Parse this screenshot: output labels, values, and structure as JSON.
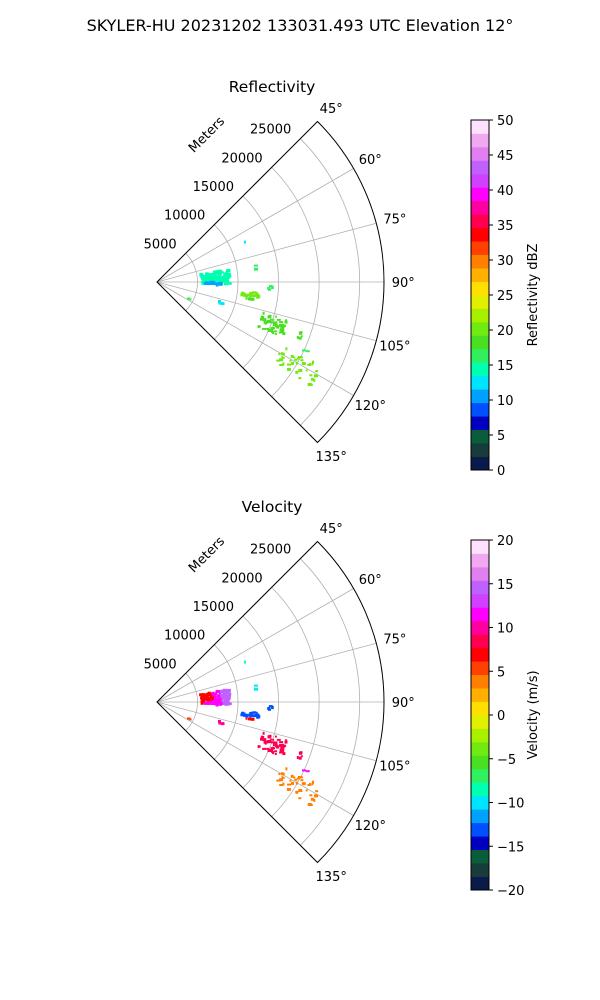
{
  "figure": {
    "title": "SKYLER-HU  20231202  133031.493 UTC Elevation 12°"
  },
  "chart_data": [
    {
      "type": "scatter",
      "subtype": "polar-sector-radar",
      "title": "Reflectivity",
      "radial_label": "Meters",
      "theta_range_deg": [
        45,
        135
      ],
      "theta_ticks": [
        "45°",
        "60°",
        "75°",
        "90°",
        "105°",
        "120°",
        "135°"
      ],
      "theta_tick_values": [
        45,
        60,
        75,
        90,
        105,
        120,
        135
      ],
      "r_max": 28000,
      "r_ticks": [
        "5000",
        "10000",
        "15000",
        "20000",
        "25000"
      ],
      "r_tick_values": [
        5000,
        10000,
        15000,
        20000,
        25000
      ],
      "grid": true,
      "colorbar": {
        "label": "Reflectivity dBZ",
        "range": [
          0,
          50
        ],
        "ticks": [
          "0",
          "5",
          "10",
          "15",
          "20",
          "25",
          "30",
          "35",
          "40",
          "45",
          "50"
        ],
        "tick_values": [
          0,
          5,
          10,
          15,
          20,
          25,
          30,
          35,
          40,
          45,
          50
        ],
        "colors": [
          "#0a1a4a",
          "#173d3a",
          "#0a5d3a",
          "#0000c0",
          "#0050ff",
          "#00a0ff",
          "#00e5ff",
          "#00ffb0",
          "#30f060",
          "#48e020",
          "#70ea10",
          "#a8f000",
          "#e0f000",
          "#ffe000",
          "#ffb000",
          "#ff8000",
          "#ff4000",
          "#ff0000",
          "#ff0050",
          "#ff00a0",
          "#ff00ff",
          "#d040ff",
          "#c060ff",
          "#e080f0",
          "#f0a8f0",
          "#ffe0ff"
        ]
      },
      "clusters": [
        {
          "az": [
            80,
            92
          ],
          "r": [
            5500,
            9000
          ],
          "value": 14,
          "count": 150
        },
        {
          "az": [
            96,
            99
          ],
          "r": [
            10500,
            12800
          ],
          "value": 20,
          "count": 26
        },
        {
          "az": [
            92,
            94
          ],
          "r": [
            13500,
            14300
          ],
          "value": 16,
          "count": 4
        },
        {
          "az": [
            106,
            114
          ],
          "r": [
            13500,
            17000
          ],
          "value": 19,
          "count": 55
        },
        {
          "az": [
            117,
            124
          ],
          "r": [
            17500,
            23000
          ],
          "value": 21,
          "count": 40
        },
        {
          "az": [
            109,
            112
          ],
          "r": [
            18500,
            20000
          ],
          "value": 18,
          "count": 5
        },
        {
          "az": [
            106,
            110
          ],
          "r": [
            7800,
            8600
          ],
          "value": 13,
          "count": 3
        },
        {
          "az": [
            80,
            83
          ],
          "r": [
            11800,
            12400
          ],
          "value": 17,
          "count": 2
        },
        {
          "az": [
            100,
            103
          ],
          "r": [
            11200,
            12000
          ],
          "value": 19,
          "count": 3
        },
        {
          "az": [
            117,
            118
          ],
          "r": [
            4200,
            4700
          ],
          "value": 16,
          "count": 3
        },
        {
          "az": [
            113,
            115
          ],
          "r": [
            20000,
            21000
          ],
          "value": 16,
          "count": 2
        },
        {
          "az": [
            90,
            93
          ],
          "r": [
            6000,
            8000
          ],
          "value": 11,
          "count": 16
        },
        {
          "az": [
            64,
            66
          ],
          "r": [
            11500,
            12200
          ],
          "value": 13,
          "count": 1
        }
      ]
    },
    {
      "type": "scatter",
      "subtype": "polar-sector-radar",
      "title": "Velocity",
      "radial_label": "Meters",
      "theta_range_deg": [
        45,
        135
      ],
      "theta_ticks": [
        "45°",
        "60°",
        "75°",
        "90°",
        "105°",
        "120°",
        "135°"
      ],
      "theta_tick_values": [
        45,
        60,
        75,
        90,
        105,
        120,
        135
      ],
      "r_max": 28000,
      "r_ticks": [
        "5000",
        "10000",
        "15000",
        "20000",
        "25000"
      ],
      "r_tick_values": [
        5000,
        10000,
        15000,
        20000,
        25000
      ],
      "grid": true,
      "colorbar": {
        "label": "Velocity (m/s)",
        "range": [
          -20,
          20
        ],
        "ticks": [
          "−20",
          "−15",
          "−10",
          "−5",
          "0",
          "5",
          "10",
          "15",
          "20"
        ],
        "tick_values": [
          -20,
          -15,
          -10,
          -5,
          0,
          5,
          10,
          15,
          20
        ],
        "colors": [
          "#0a1a4a",
          "#173d3a",
          "#0a5d3a",
          "#0000c0",
          "#0050ff",
          "#00a0ff",
          "#00e5ff",
          "#00ffb0",
          "#30f060",
          "#48e020",
          "#70ea10",
          "#a8f000",
          "#e0f000",
          "#ffe000",
          "#ffb000",
          "#ff8000",
          "#ff4000",
          "#ff0000",
          "#ff0050",
          "#ff00a0",
          "#ff00ff",
          "#d040ff",
          "#c060ff",
          "#e080f0",
          "#f0a8f0",
          "#ffe0ff"
        ]
      },
      "clusters": [
        {
          "az": [
            80,
            92
          ],
          "r": [
            5500,
            7000
          ],
          "value": 7,
          "count": 50
        },
        {
          "az": [
            80,
            92
          ],
          "r": [
            7000,
            8000
          ],
          "value": 12,
          "count": 45
        },
        {
          "az": [
            80,
            92
          ],
          "r": [
            8000,
            9000
          ],
          "value": 15,
          "count": 55
        },
        {
          "az": [
            96,
            99
          ],
          "r": [
            10500,
            12800
          ],
          "value": -13,
          "count": 26
        },
        {
          "az": [
            92,
            94
          ],
          "r": [
            13500,
            14300
          ],
          "value": -13,
          "count": 4
        },
        {
          "az": [
            106,
            114
          ],
          "r": [
            13500,
            17000
          ],
          "value": 8,
          "count": 55
        },
        {
          "az": [
            117,
            124
          ],
          "r": [
            17500,
            23000
          ],
          "value": 4,
          "count": 40
        },
        {
          "az": [
            109,
            112
          ],
          "r": [
            18500,
            20000
          ],
          "value": 9,
          "count": 5
        },
        {
          "az": [
            106,
            110
          ],
          "r": [
            7800,
            8600
          ],
          "value": 10,
          "count": 3
        },
        {
          "az": [
            80,
            83
          ],
          "r": [
            11800,
            12400
          ],
          "value": -10,
          "count": 2
        },
        {
          "az": [
            100,
            103
          ],
          "r": [
            11200,
            12000
          ],
          "value": 7,
          "count": 3
        },
        {
          "az": [
            117,
            118
          ],
          "r": [
            4200,
            4700
          ],
          "value": 6,
          "count": 3
        },
        {
          "az": [
            113,
            115
          ],
          "r": [
            20000,
            21000
          ],
          "value": 12,
          "count": 2
        },
        {
          "az": [
            90,
            93
          ],
          "r": [
            6000,
            8000
          ],
          "value": 11,
          "count": 16
        },
        {
          "az": [
            64,
            66
          ],
          "r": [
            11500,
            12200
          ],
          "value": -9,
          "count": 1
        }
      ]
    }
  ]
}
